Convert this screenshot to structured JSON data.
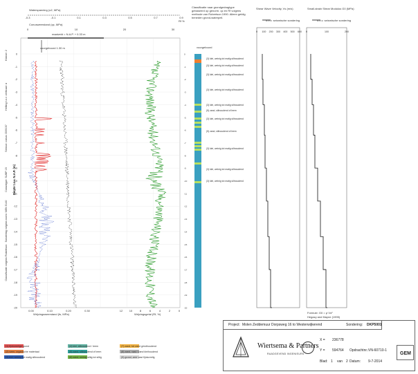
{
  "header": {
    "water_pressure_label": "Waterspanning (u2, MPa)",
    "water_pressure_ticks": [
      "-0.3",
      "-0.1",
      "0.1",
      "0.3",
      "0.5",
      "0.7",
      "0.9"
    ],
    "cone_resistance_label": "Conusweerstand (qc, MPa)",
    "cone_resistance_ticks": [
      "0",
      "10",
      "20",
      "30"
    ],
    "maaiveld": "maaiveld = N.A.P. + 0.33 m",
    "voorgeboord": "voorgeboord 1.30 m",
    "axis_right_label": "Rf %",
    "left_axis_label": "Diepte t.o.v. N.A.P. (m)",
    "side_labels": [
      "Klasse: 2",
      "Helling t.o.v. verticaal: α",
      "Sensor: conus: D09157",
      "Conustype: SUBP 15",
      "Sondering volgens norm: NEN 5140",
      "Classificatie volgens Robertson"
    ]
  },
  "classification": {
    "header": "Classificatie naar grondgedragtype gebaseerd op genorm. qc en Rf volgens methode van Robertson 1990. Alleen geldig beneden grond-waterpeil.",
    "voorgeboord_label": "voorgeboord",
    "labels": [
      "(3) klei, weinig tot matig siltnoudend",
      "(3) klei, weinig tot matig siltnoudend",
      "(3) klei, weinig tot matig siltnoudend",
      "(3) klei, weinig tot matig siltnoudend",
      "(3) klei, weinig tot matig siltnoudend",
      "(5) zand, siltnoudend of leem",
      "(3) klei, weinig tot matig siltnoudend",
      "(5) zand, siltnoudend of leem",
      "(3) klei, weinig tot matig siltnoudend",
      "(3) klei, weinig tot matig siltnoudend",
      "(3) klei, weinig tot matig siltnoudend"
    ]
  },
  "shear_wave": {
    "title": "Shear Wave Velocity, Vs (m/s)",
    "legend": "o.b.v. seismische sondering",
    "ticks": [
      "0",
      "100",
      "200",
      "300",
      "400",
      "500",
      "600"
    ]
  },
  "shear_modulus": {
    "title": "Small-strain Shear Modulus G0 (MPa)",
    "legend": "o.b.v. seismische sondering",
    "ticks": [
      "0",
      "100",
      "200"
    ],
    "formula": "Formule: G0 = ρ·Vs²",
    "reference": "Hegazy and Mayne (1995)"
  },
  "bottom_axes": {
    "wrijvingsweerstand_label": "Wrijvingsweerstand (fs, MPa)",
    "wrijvingsweerstand_ticks": [
      "0.00",
      "0.10",
      "0.20",
      "0.30"
    ],
    "wrijvingsgetal_label": "Wrijvingsgetal (Rf, %)",
    "wrijvingsgetal_ticks": [
      "12",
      "10",
      "8",
      "6",
      "4",
      "2",
      "0"
    ]
  },
  "title_block": {
    "project_label": "Project:",
    "project_value": "Molen Zeddemuur Dorpsweg 16 to Westerwijkerend",
    "sondering_label": "Sondering:",
    "sondering_value": "DKP5001",
    "company": "Wiertsema & Partners",
    "company_sub": "RAADGEVEND INGENIEURS",
    "x_label": "X =",
    "x_value": "236778",
    "y_label": "Y =",
    "y_value": "594764",
    "opdracht_label": "Opdrachtnr.:",
    "opdracht_value": "VN-60710-1",
    "blad_label": "Blad:",
    "blad_value": "1",
    "blad_van": "van",
    "blad_total": "2",
    "datum_label": "Datum:",
    "datum_value": "9-7-2014",
    "gem_label": "GEM"
  },
  "legend": [
    {
      "label": "(1) fijnkorrelige grond",
      "color": "#e05050"
    },
    {
      "label": "(2) veen, organische materiaal",
      "color": "#e08040"
    },
    {
      "label": "(3) klei, weinig tot matig siltnoudend",
      "color": "#2a5ab0"
    },
    {
      "label": "(4) klei, siltnoudend / leem",
      "color": "#5fb0a0"
    },
    {
      "label": "(5) zand, siltnoudend of leem",
      "color": "#2e9e9a"
    },
    {
      "label": "(6) zand, weinig siltig tot siltig",
      "color": "#70b040"
    },
    {
      "label": "(7) zand, tot zand grindhoudend",
      "color": "#f0b040"
    },
    {
      "label": "(8) zand, vast / zand kleihoudend",
      "color": "#b0b0b0"
    },
    {
      "label": "(9) grond, zeer vast fijnkorrelig",
      "color": "#d8d8d8"
    }
  ],
  "colors": {
    "cone_resistance": "#e02020",
    "friction": "#2040c0",
    "friction_ratio": "#2a9a2a",
    "pore_pressure": "#333333",
    "class_main": "#3aa0c0",
    "class_sand": "#b8e060",
    "class_top": "#f08030"
  }
}
